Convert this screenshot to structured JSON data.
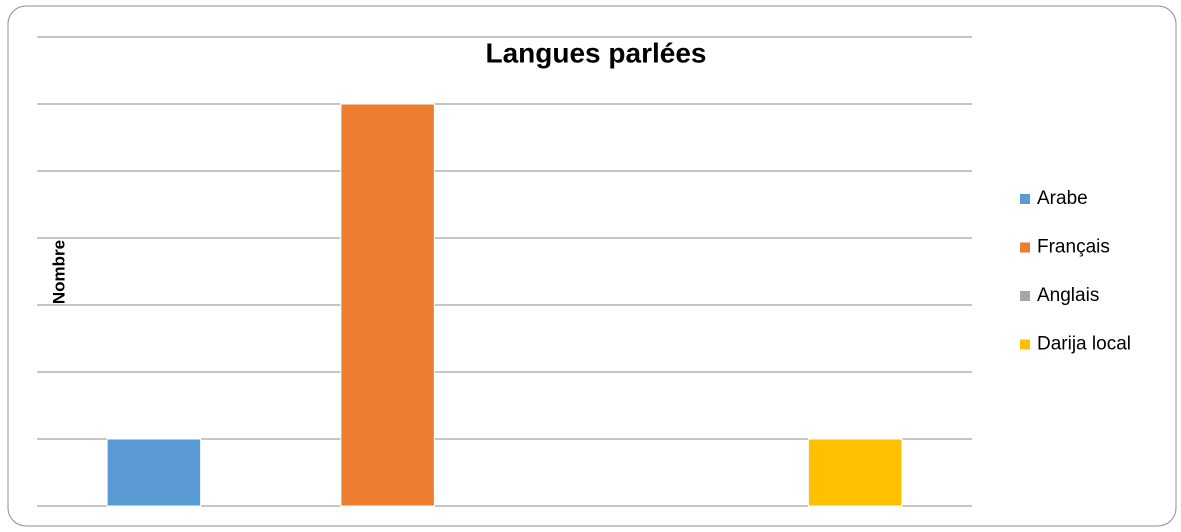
{
  "chart_data": {
    "type": "bar",
    "title": "Langues parlées",
    "y_label": "Nombre",
    "categories": [
      "Arabe",
      "Français",
      "Anglais",
      "Darija local"
    ],
    "values": [
      1,
      6,
      0,
      1
    ],
    "colors": [
      "#5b9bd5",
      "#ed7d31",
      "#a5a5a5",
      "#ffc000"
    ],
    "ylim": [
      0,
      7
    ],
    "yticks": [
      0,
      1,
      2,
      3,
      4,
      5,
      6,
      7
    ],
    "grid": true,
    "legend": "right"
  }
}
